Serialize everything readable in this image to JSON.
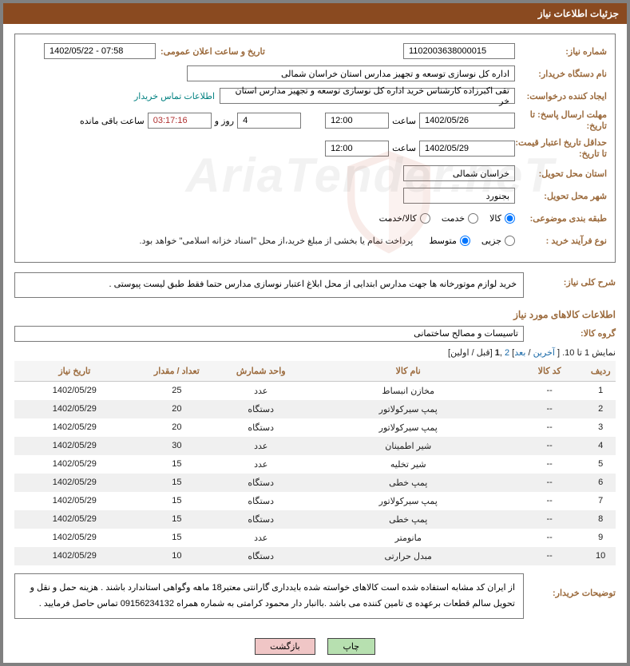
{
  "colors": {
    "border_outer": "#808080",
    "header_bg": "#8a4a20",
    "header_fg": "#ffffff",
    "label_fg": "#9b6a3c",
    "link_fg": "#008080",
    "paging_link": "#1a6aa8",
    "field_border": "#7a7a7a",
    "row_even": "#f0f0f0",
    "row_odd": "#ffffff",
    "btn_green_bg": "#b7e0b0",
    "btn_red_bg": "#f0c6c6"
  },
  "header": {
    "title": "جزئیات اطلاعات نیاز"
  },
  "labels": {
    "need_no": "شماره نیاز:",
    "announce_dt": "تاریخ و ساعت اعلان عمومی:",
    "buyer_org": "نام دستگاه خریدار:",
    "creator": "ایجاد کننده درخواست:",
    "contact_link": "اطلاعات تماس خریدار",
    "reply_deadline": "مهلت ارسال پاسخ: تا تاریخ:",
    "hour": "ساعت",
    "days_and": "روز و",
    "hours_remaining": "ساعت باقی مانده",
    "price_validity": "حداقل تاریخ اعتبار قیمت: تا تاریخ:",
    "delivery_province": "استان محل تحویل:",
    "delivery_city": "شهر محل تحویل:",
    "subject_class": "طبقه بندی موضوعی:",
    "radio_goods": "کالا",
    "radio_service": "خدمت",
    "radio_goods_service": "کالا/خدمت",
    "purchase_type": "نوع فرآیند خرید :",
    "radio_small": "جزیی",
    "radio_medium": "متوسط",
    "payment_note": "پرداخت تمام یا بخشی از مبلغ خرید،از محل \"اسناد خزانه اسلامی\" خواهد بود.",
    "overall_desc": "شرح کلی نیاز:",
    "goods_info_title": "اطلاعات کالاهای مورد نیاز",
    "goods_group": "گروه کالا:",
    "buyer_notes": "توضیحات خریدار:"
  },
  "fields": {
    "need_no": "1102003638000015",
    "announce_dt": "1402/05/22 - 07:58",
    "buyer_org": "اداره کل نوسازی  توسعه و تجهیز مدارس استان خراسان شمالی",
    "creator": "تقی اکبرزاده کارشناس خرید اداره کل نوسازی  توسعه و تجهیز مدارس استان خر",
    "reply_date": "1402/05/26",
    "reply_time": "12:00",
    "days_remaining": "4",
    "time_remaining": "03:17:16",
    "price_valid_date": "1402/05/29",
    "price_valid_time": "12:00",
    "province": "خراسان شمالی",
    "city": "بجنورد",
    "overall_desc": "خرید لوازم موتورخانه ها جهت مدارس ابتدایی از محل ابلاغ اعتبار نوسازی مدارس حتما فقط طبق لیست پیوستی .",
    "goods_group": "تاسیسات و مصالح ساختمانی",
    "buyer_notes": "از ایران کد مشابه استفاده شده است کالاهای خواسته شده بایدداری گارانتی معتبر18 ماهه وگواهی  استاندارد باشند . هزینه حمل و نقل و تحویل سالم قطعات برعهده ی تامین کننده می باشد .باانبار دار محمود کرامتی به شماره همراه 09156234132 تماس حاصل فرمایید ."
  },
  "paging": {
    "prefix": "نمایش 1 تا 10. [ ",
    "last": "آخرین",
    "sep1": " / ",
    "next": "بعد",
    "mid1": "] ",
    "p2": "2",
    "comma": " ,",
    "p1": "1",
    "mid2": " [",
    "prev_first": "قبل / اولین",
    "suffix": "]"
  },
  "table": {
    "columns": [
      "ردیف",
      "کد کالا",
      "نام کالا",
      "واحد شمارش",
      "تعداد / مقدار",
      "تاریخ نیاز"
    ],
    "col_widths": [
      "5%",
      "12%",
      "35%",
      "14%",
      "14%",
      "20%"
    ],
    "rows": [
      [
        "1",
        "--",
        "مخازن انبساط",
        "عدد",
        "25",
        "1402/05/29"
      ],
      [
        "2",
        "--",
        "پمپ سیرکولاتور",
        "دستگاه",
        "20",
        "1402/05/29"
      ],
      [
        "3",
        "--",
        "پمپ سیرکولاتور",
        "دستگاه",
        "20",
        "1402/05/29"
      ],
      [
        "4",
        "--",
        "شیر اطمینان",
        "عدد",
        "30",
        "1402/05/29"
      ],
      [
        "5",
        "--",
        "شیر تخلیه",
        "عدد",
        "15",
        "1402/05/29"
      ],
      [
        "6",
        "--",
        "پمپ خطی",
        "دستگاه",
        "15",
        "1402/05/29"
      ],
      [
        "7",
        "--",
        "پمپ سیرکولاتور",
        "دستگاه",
        "15",
        "1402/05/29"
      ],
      [
        "8",
        "--",
        "پمپ خطی",
        "دستگاه",
        "15",
        "1402/05/29"
      ],
      [
        "9",
        "--",
        "مانومتر",
        "عدد",
        "15",
        "1402/05/29"
      ],
      [
        "10",
        "--",
        "مبدل حرارتی",
        "دستگاه",
        "10",
        "1402/05/29"
      ]
    ]
  },
  "buttons": {
    "print": "چاپ",
    "back": "بازگشت"
  },
  "watermark": "AriaTender.neT"
}
